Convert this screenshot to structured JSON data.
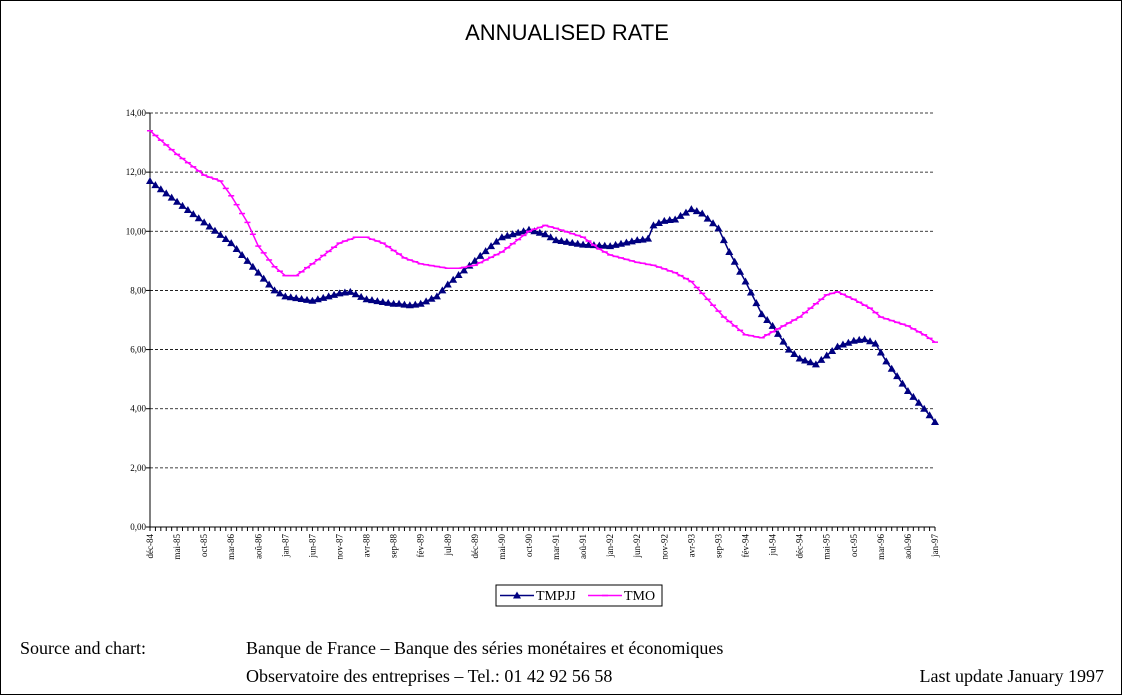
{
  "chart_data": {
    "type": "line",
    "title": "ANNUALISED RATE",
    "categories": [
      "déc-84",
      null,
      null,
      null,
      null,
      "mai-85",
      null,
      null,
      null,
      null,
      "oct-85",
      null,
      null,
      null,
      null,
      "mar-86",
      null,
      null,
      null,
      null,
      "aoû-86",
      null,
      null,
      null,
      null,
      "jan-87",
      null,
      null,
      null,
      null,
      "jun-87",
      null,
      null,
      null,
      null,
      "nov-87",
      null,
      null,
      null,
      null,
      "avr-88",
      null,
      null,
      null,
      null,
      "sep-88",
      null,
      null,
      null,
      null,
      "fév-89",
      null,
      null,
      null,
      null,
      "jul-89",
      null,
      null,
      null,
      null,
      "déc-89",
      null,
      null,
      null,
      null,
      "mai-90",
      null,
      null,
      null,
      null,
      "oct-90",
      null,
      null,
      null,
      null,
      "mar-91",
      null,
      null,
      null,
      null,
      "aoû-91",
      null,
      null,
      null,
      null,
      "jan-92",
      null,
      null,
      null,
      null,
      "jun-92",
      null,
      null,
      null,
      null,
      "nov-92",
      null,
      null,
      null,
      null,
      "avr-93",
      null,
      null,
      null,
      null,
      "sep-93",
      null,
      null,
      null,
      null,
      "fév-94",
      null,
      null,
      null,
      null,
      "jul-94",
      null,
      null,
      null,
      null,
      "déc-94",
      null,
      null,
      null,
      null,
      "mai-95",
      null,
      null,
      null,
      null,
      "oct-95",
      null,
      null,
      null,
      null,
      "mar-96",
      null,
      null,
      null,
      null,
      "aoû-96",
      null,
      null,
      null,
      null,
      "jan-97"
    ],
    "series": [
      {
        "name": "TMPJJ",
        "color": "#000080",
        "marker": "triangle",
        "values": [
          11.7,
          11.56,
          11.42,
          11.28,
          11.14,
          11.0,
          10.86,
          10.72,
          10.58,
          10.44,
          10.3,
          10.16,
          10.02,
          9.88,
          9.74,
          9.6,
          9.4,
          9.2,
          9.0,
          8.8,
          8.6,
          8.4,
          8.2,
          8.0,
          7.9,
          7.8,
          7.77,
          7.74,
          7.71,
          7.68,
          7.65,
          7.7,
          7.75,
          7.8,
          7.85,
          7.9,
          7.93,
          7.95,
          7.87,
          7.78,
          7.7,
          7.67,
          7.64,
          7.61,
          7.58,
          7.55,
          7.55,
          7.52,
          7.5,
          7.52,
          7.55,
          7.63,
          7.72,
          7.8,
          8.0,
          8.2,
          8.36,
          8.52,
          8.68,
          8.84,
          9.0,
          9.17,
          9.33,
          9.5,
          9.65,
          9.8,
          9.85,
          9.9,
          9.95,
          10.0,
          10.05,
          10.0,
          9.95,
          9.9,
          9.8,
          9.7,
          9.67,
          9.64,
          9.61,
          9.58,
          9.55,
          9.54,
          9.53,
          9.52,
          9.51,
          9.5,
          9.54,
          9.58,
          9.62,
          9.66,
          9.7,
          9.72,
          9.75,
          10.2,
          10.28,
          10.35,
          10.38,
          10.4,
          10.52,
          10.63,
          10.75,
          10.68,
          10.6,
          10.43,
          10.27,
          10.1,
          9.7,
          9.3,
          8.97,
          8.63,
          8.3,
          7.93,
          7.57,
          7.2,
          7.0,
          6.8,
          6.53,
          6.27,
          6.0,
          5.85,
          5.7,
          5.63,
          5.57,
          5.5,
          5.65,
          5.8,
          5.95,
          6.1,
          6.17,
          6.23,
          6.3,
          6.33,
          6.35,
          6.28,
          6.2,
          5.9,
          5.6,
          5.35,
          5.1,
          4.85,
          4.6,
          4.4,
          4.2,
          4.0,
          3.78,
          3.55
        ]
      },
      {
        "name": "TMO",
        "color": "#ff00ff",
        "marker": "dash",
        "values": [
          13.4,
          13.24,
          13.08,
          12.92,
          12.76,
          12.6,
          12.46,
          12.32,
          12.18,
          12.04,
          11.9,
          11.83,
          11.77,
          11.7,
          11.45,
          11.2,
          10.9,
          10.6,
          10.3,
          9.9,
          9.5,
          9.27,
          9.03,
          8.8,
          8.65,
          8.5,
          8.5,
          8.5,
          8.63,
          8.77,
          8.9,
          9.04,
          9.18,
          9.32,
          9.46,
          9.6,
          9.67,
          9.73,
          9.8,
          9.8,
          9.8,
          9.73,
          9.67,
          9.6,
          9.48,
          9.35,
          9.23,
          9.1,
          9.03,
          8.97,
          8.9,
          8.87,
          8.84,
          8.81,
          8.78,
          8.75,
          8.75,
          8.75,
          8.78,
          8.82,
          8.85,
          8.94,
          9.03,
          9.12,
          9.21,
          9.3,
          9.44,
          9.58,
          9.72,
          9.86,
          10.0,
          10.07,
          10.13,
          10.2,
          10.15,
          10.1,
          10.04,
          9.98,
          9.92,
          9.86,
          9.8,
          9.67,
          9.53,
          9.4,
          9.3,
          9.2,
          9.15,
          9.1,
          9.05,
          9.0,
          8.95,
          8.92,
          8.88,
          8.85,
          8.79,
          8.73,
          8.66,
          8.6,
          8.5,
          8.4,
          8.3,
          8.1,
          7.9,
          7.7,
          7.5,
          7.3,
          7.1,
          6.95,
          6.8,
          6.65,
          6.5,
          6.47,
          6.43,
          6.4,
          6.5,
          6.6,
          6.7,
          6.8,
          6.9,
          7.0,
          7.1,
          7.25,
          7.4,
          7.55,
          7.7,
          7.85,
          7.9,
          7.95,
          7.87,
          7.78,
          7.7,
          7.6,
          7.5,
          7.4,
          7.25,
          7.1,
          7.04,
          6.98,
          6.92,
          6.86,
          6.8,
          6.7,
          6.6,
          6.5,
          6.38,
          6.25
        ]
      }
    ],
    "ylim": [
      0,
      14
    ],
    "yticks": [
      {
        "value": 0,
        "label": "0,00"
      },
      {
        "value": 2,
        "label": "2,00"
      },
      {
        "value": 4,
        "label": "4,00"
      },
      {
        "value": 6,
        "label": "6,00"
      },
      {
        "value": 8,
        "label": "8,00"
      },
      {
        "value": 10,
        "label": "10,00"
      },
      {
        "value": 12,
        "label": "12,00"
      },
      {
        "value": 14,
        "label": "14,00"
      }
    ],
    "grid": true,
    "legend": "bottom"
  },
  "footer": {
    "source_label": "Source and chart:",
    "line1": "Banque de France – Banque des séries monétaires et économiques",
    "line2": "Observatoire des entreprises – Tel.: 01 42 92 56 58",
    "update": "Last update January 1997"
  }
}
